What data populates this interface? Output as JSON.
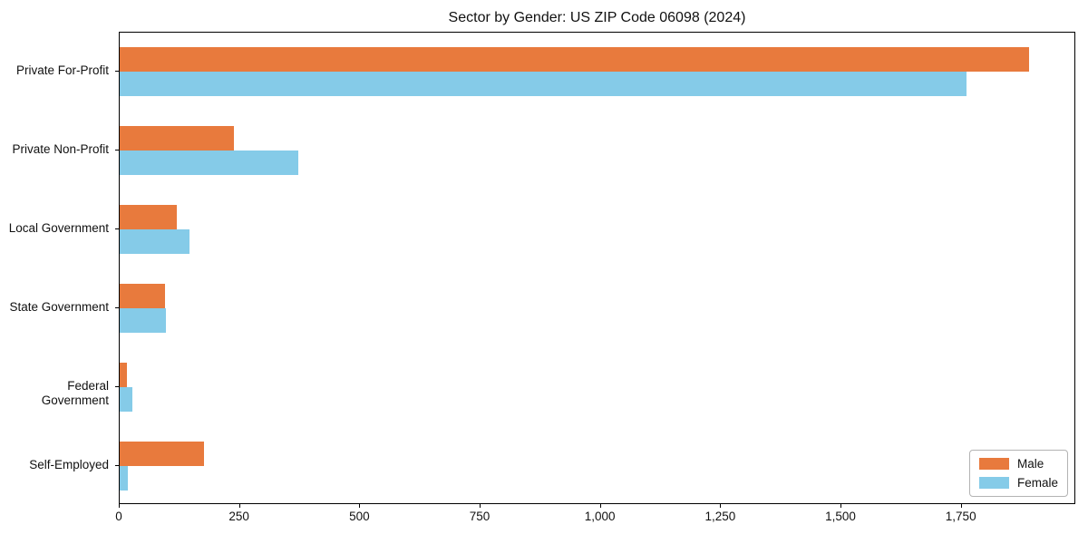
{
  "chart_data": {
    "type": "bar",
    "orientation": "horizontal",
    "title": "Sector by Gender: US ZIP Code 06098 (2024)",
    "categories": [
      "Private For-Profit",
      "Private Non-Profit",
      "Local Government",
      "State Government",
      "Federal Government",
      "Self-Employed"
    ],
    "series": [
      {
        "name": "Male",
        "color": "#e87a3d",
        "values": [
          1890,
          237,
          118,
          94,
          16,
          176
        ]
      },
      {
        "name": "Female",
        "color": "#85cbe8",
        "values": [
          1760,
          371,
          146,
          97,
          27,
          17
        ]
      }
    ],
    "xlabel": "",
    "ylabel": "",
    "xlim": [
      0,
      1988
    ],
    "xticks": [
      0,
      250,
      500,
      750,
      1000,
      1250,
      1500,
      1750
    ],
    "xtick_labels": [
      "0",
      "250",
      "500",
      "750",
      "1,000",
      "1,250",
      "1,500",
      "1,750"
    ],
    "grid": false,
    "legend": {
      "position": "lower right"
    },
    "colors": {
      "spine": "#000000",
      "background": "#ffffff"
    }
  }
}
